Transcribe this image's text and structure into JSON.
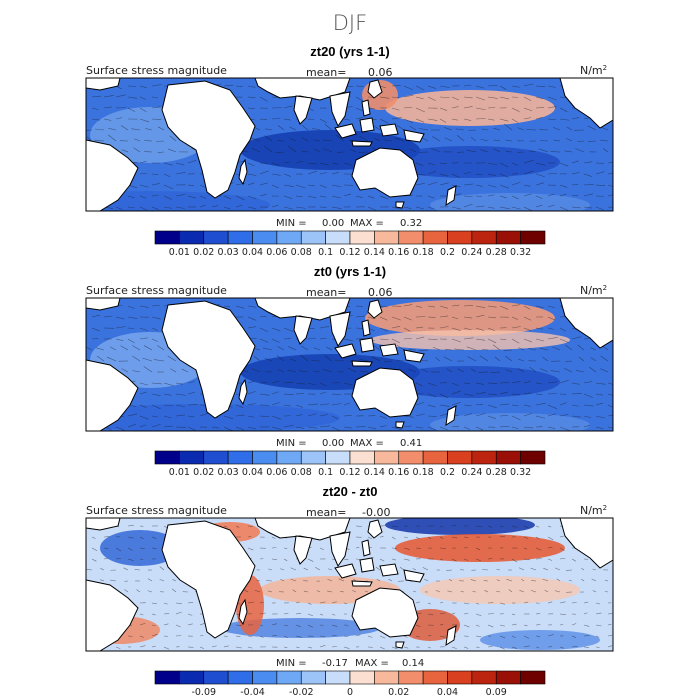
{
  "figure_title": "DJF",
  "chart_data": [
    {
      "type": "heatmap",
      "title": "zt20 (yrs 1-1)",
      "left_label": "Surface stress magnitude",
      "mean_label": "mean=",
      "mean_value": "0.06",
      "units": "N/m",
      "units_exp": "2",
      "stats": {
        "min_label": "MIN =",
        "min": "0.00",
        "max_label": "MAX =",
        "max": "0.32"
      },
      "colorbar": {
        "colors": [
          "#00008b",
          "#0a2bb0",
          "#1f4fd0",
          "#2f6ee8",
          "#4a8cf0",
          "#6fa8f5",
          "#9cc4f8",
          "#c8ddfa",
          "#fbe0d2",
          "#f8b89c",
          "#f28e6c",
          "#e8643f",
          "#d8401f",
          "#bd2410",
          "#9a1006",
          "#6e0000"
        ],
        "tick_labels": [
          "0.01",
          "0.02",
          "0.03",
          "0.04",
          "0.06",
          "0.08",
          "0.1",
          "0.12",
          "0.14",
          "0.16",
          "0.18",
          "0.2",
          "0.24",
          "0.28",
          "0.32"
        ]
      }
    },
    {
      "type": "heatmap",
      "title": "zt0 (yrs 1-1)",
      "left_label": "Surface stress magnitude",
      "mean_label": "mean=",
      "mean_value": "0.06",
      "units": "N/m",
      "units_exp": "2",
      "stats": {
        "min_label": "MIN =",
        "min": "0.00",
        "max_label": "MAX =",
        "max": "0.41"
      },
      "colorbar": {
        "colors": [
          "#00008b",
          "#0a2bb0",
          "#1f4fd0",
          "#2f6ee8",
          "#4a8cf0",
          "#6fa8f5",
          "#9cc4f8",
          "#c8ddfa",
          "#fbe0d2",
          "#f8b89c",
          "#f28e6c",
          "#e8643f",
          "#d8401f",
          "#bd2410",
          "#9a1006",
          "#6e0000"
        ],
        "tick_labels": [
          "0.01",
          "0.02",
          "0.03",
          "0.04",
          "0.06",
          "0.08",
          "0.1",
          "0.12",
          "0.14",
          "0.16",
          "0.18",
          "0.2",
          "0.24",
          "0.28",
          "0.32"
        ]
      }
    },
    {
      "type": "heatmap",
      "title": "zt20 - zt0",
      "left_label": "Surface stress magnitude",
      "mean_label": "mean=",
      "mean_value": "-0.00",
      "units": "N/m",
      "units_exp": "2",
      "stats": {
        "min_label": "MIN =",
        "min": "-0.17",
        "max_label": "MAX =",
        "max": "0.14"
      },
      "colorbar": {
        "colors": [
          "#00008b",
          "#0a2bb0",
          "#1f4fd0",
          "#2f6ee8",
          "#4a8cf0",
          "#6fa8f5",
          "#9cc4f8",
          "#c8ddfa",
          "#fbe0d2",
          "#f8b89c",
          "#f28e6c",
          "#e8643f",
          "#d8401f",
          "#bd2410",
          "#9a1006",
          "#6e0000"
        ],
        "tick_labels": [
          "-0.09",
          "-0.04",
          "-0.02",
          "0",
          "0.02",
          "0.04",
          "0.09"
        ]
      }
    }
  ]
}
